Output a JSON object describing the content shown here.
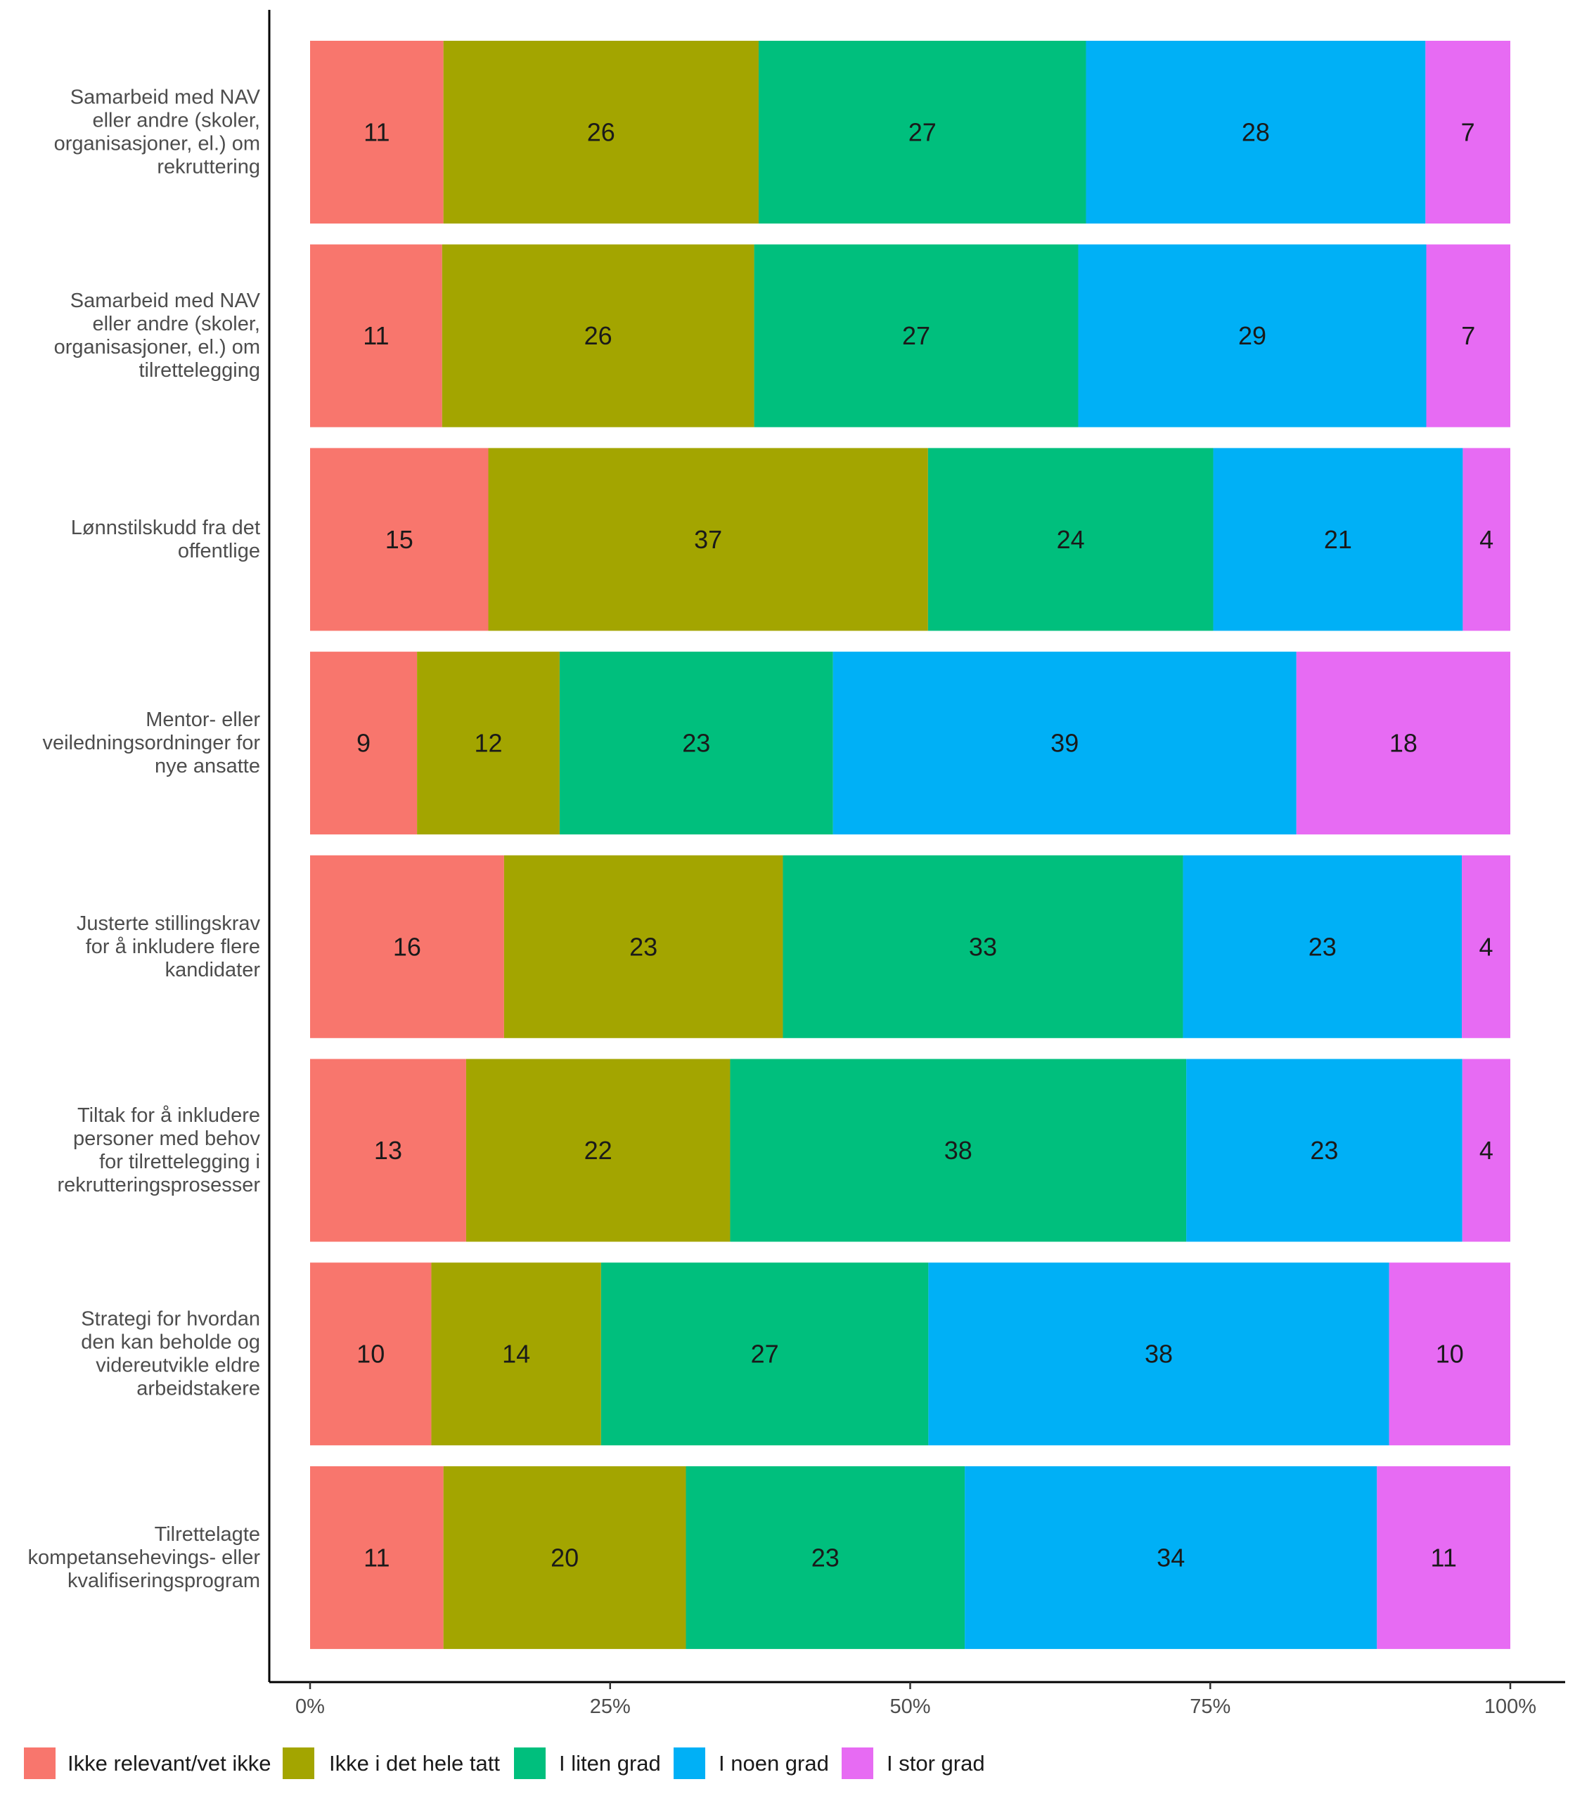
{
  "chart_data": {
    "type": "bar",
    "orientation": "horizontal",
    "stacked": true,
    "normalized": true,
    "categories": [
      "Samarbeid med NAV eller andre (skoler, organisasjoner, el.) om rekruttering",
      "Samarbeid med NAV eller andre (skoler, organisasjoner, el.) om tilrettelegging",
      "Lønnstilskudd fra det offentlige",
      "Mentor- eller veiledningsordninger for nye ansatte",
      "Justerte stillingskrav for å inkludere flere kandidater",
      "Tiltak for å inkludere personer med behov for tilrettelegging i rekrutteringsprosesser",
      "Strategi for hvordan den kan beholde og videreutvikle eldre arbeidstakere",
      "Tilrettelagte kompetansehevings- eller kvalifiseringsprogram"
    ],
    "category_lines": [
      [
        "Samarbeid med NAV",
        "eller andre (skoler,",
        "organisasjoner, el.) om",
        "rekruttering"
      ],
      [
        "Samarbeid med NAV",
        "eller andre (skoler,",
        "organisasjoner, el.) om",
        "tilrettelegging"
      ],
      [
        "Lønnstilskudd fra det",
        "offentlige"
      ],
      [
        "Mentor- eller",
        "veiledningsordninger for",
        "nye ansatte"
      ],
      [
        "Justerte stillingskrav",
        "for å inkludere flere",
        "kandidater"
      ],
      [
        "Tiltak for å inkludere",
        "personer med behov",
        "for tilrettelegging i",
        "rekrutteringsprosesser"
      ],
      [
        "Strategi for hvordan",
        "den kan beholde og",
        "videreutvikle eldre",
        "arbeidstakere"
      ],
      [
        "Tilrettelagte",
        "kompetansehevings- eller",
        "kvalifiseringsprogram"
      ]
    ],
    "series": [
      {
        "name": "Ikke relevant/vet ikke",
        "color": "#F8766D",
        "values": [
          11,
          11,
          15,
          9,
          16,
          13,
          10,
          11
        ]
      },
      {
        "name": "Ikke i det hele tatt",
        "color": "#A3A500",
        "values": [
          26,
          26,
          37,
          12,
          23,
          22,
          14,
          20
        ]
      },
      {
        "name": "I liten grad",
        "color": "#00BF7D",
        "values": [
          27,
          27,
          24,
          23,
          33,
          38,
          27,
          23
        ]
      },
      {
        "name": "I noen grad",
        "color": "#00B0F6",
        "values": [
          28,
          29,
          21,
          39,
          23,
          23,
          38,
          34
        ]
      },
      {
        "name": "I stor grad",
        "color": "#E76BF3",
        "values": [
          7,
          7,
          4,
          18,
          4,
          4,
          10,
          11
        ]
      }
    ],
    "x_ticks": [
      "0%",
      "25%",
      "50%",
      "75%",
      "100%"
    ],
    "xlim": [
      0,
      100
    ],
    "title": "",
    "xlabel": "",
    "ylabel": "",
    "grid": false,
    "legend_position": "bottom",
    "value_labels": true
  }
}
